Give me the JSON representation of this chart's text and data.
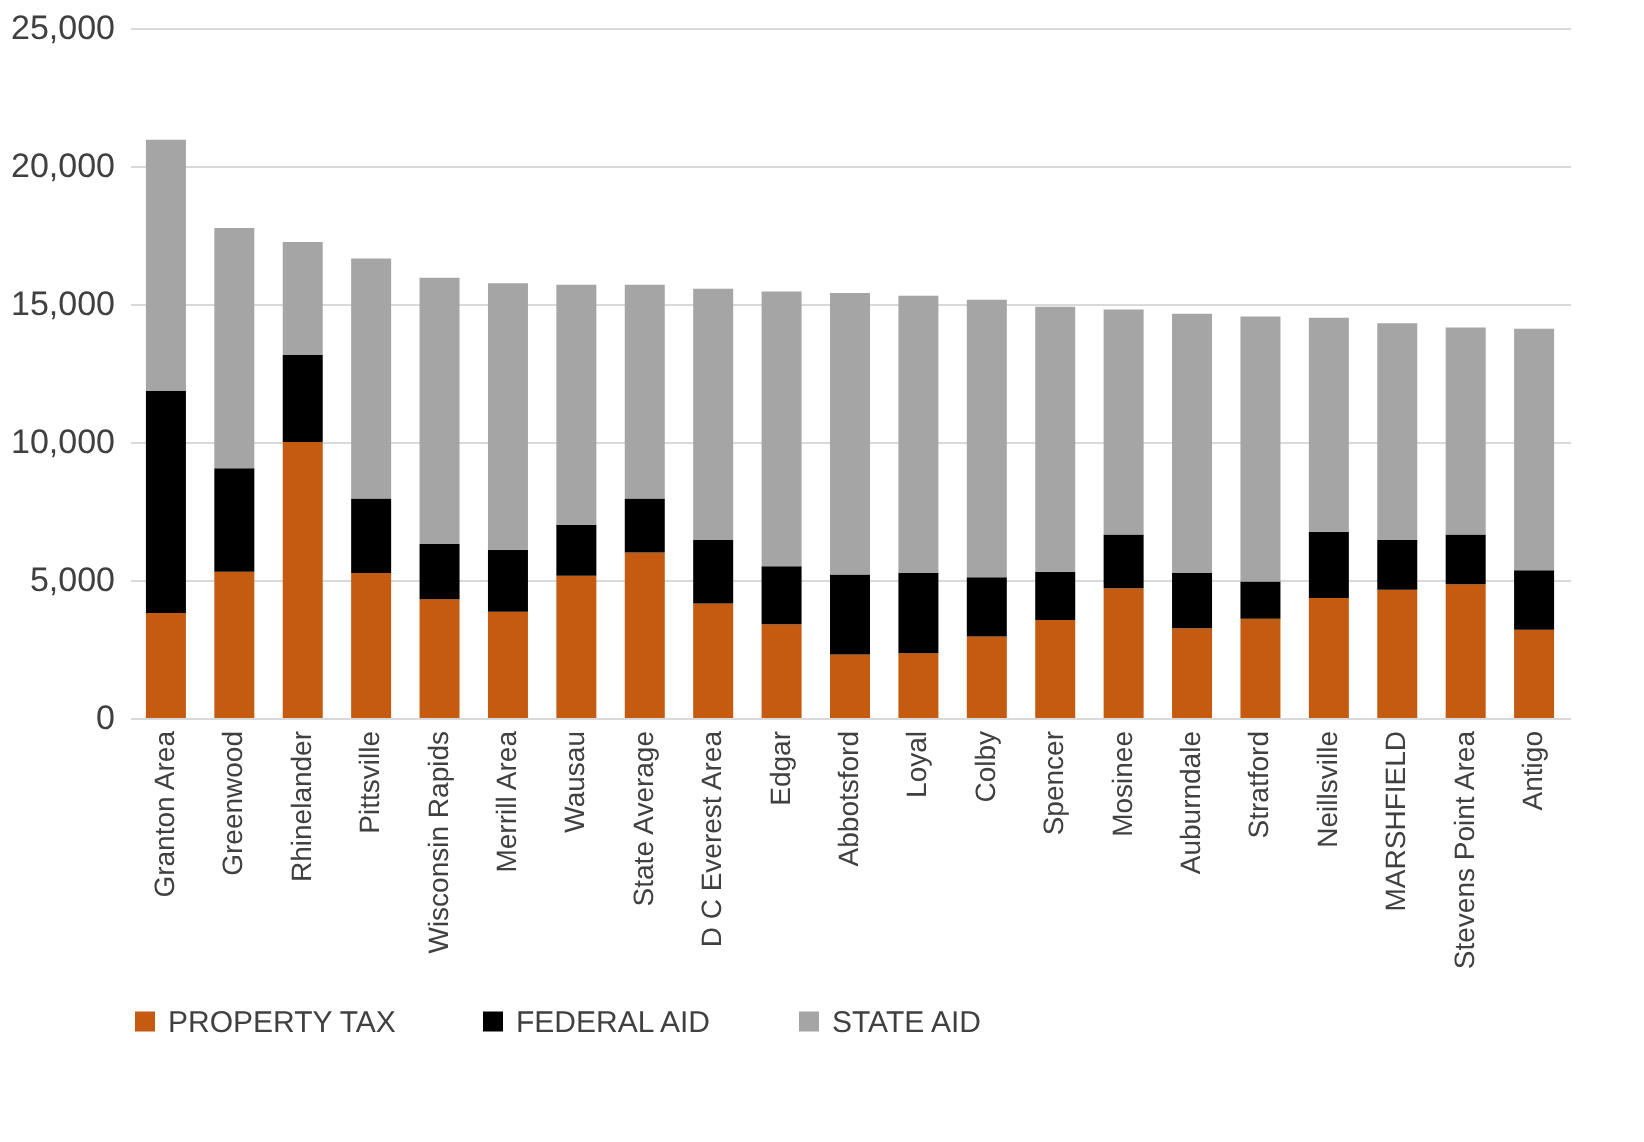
{
  "chart_data": {
    "type": "bar",
    "stacked": true,
    "categories": [
      "Granton Area",
      "Greenwood",
      "Rhinelander",
      "Pittsville",
      "Wisconsin Rapids",
      "Merrill Area",
      "Wausau",
      "State Average",
      "D C Everest Area",
      "Edgar",
      "Abbotsford",
      "Loyal",
      "Colby",
      "Spencer",
      "Mosinee",
      "Auburndale",
      "Stratford",
      "Neillsville",
      "MARSHFIELD",
      "Stevens Point Area",
      "Antigo"
    ],
    "series": [
      {
        "name": "PROPERTY TAX",
        "color": "#c55a11",
        "values": [
          3800,
          5300,
          10000,
          5250,
          4300,
          3850,
          5150,
          6000,
          4150,
          3400,
          2300,
          2350,
          2950,
          3550,
          4700,
          3250,
          3600,
          4350,
          4650,
          4850,
          3200
        ]
      },
      {
        "name": "FEDERAL AID",
        "color": "#000000",
        "values": [
          8050,
          3750,
          3150,
          2700,
          2000,
          2250,
          1850,
          1950,
          2300,
          2100,
          2900,
          2900,
          2150,
          1750,
          1950,
          2000,
          1350,
          2400,
          1800,
          1800,
          2150
        ]
      },
      {
        "name": "STATE AID",
        "color": "#a5a5a5",
        "values": [
          9100,
          8700,
          4100,
          8700,
          9650,
          9650,
          8700,
          7750,
          9100,
          9950,
          10200,
          10050,
          10050,
          9600,
          8150,
          9400,
          9600,
          7750,
          7850,
          7500,
          8750
        ]
      }
    ],
    "ylim": [
      0,
      25000
    ],
    "yticks": [
      {
        "value": 0,
        "label": "0"
      },
      {
        "value": 5000,
        "label": "5,000"
      },
      {
        "value": 10000,
        "label": "10,000"
      },
      {
        "value": 15000,
        "label": "15,000"
      },
      {
        "value": 20000,
        "label": "20,000"
      },
      {
        "value": 25000,
        "label": "25,000"
      }
    ],
    "grid": "y",
    "legend": "bottom"
  }
}
